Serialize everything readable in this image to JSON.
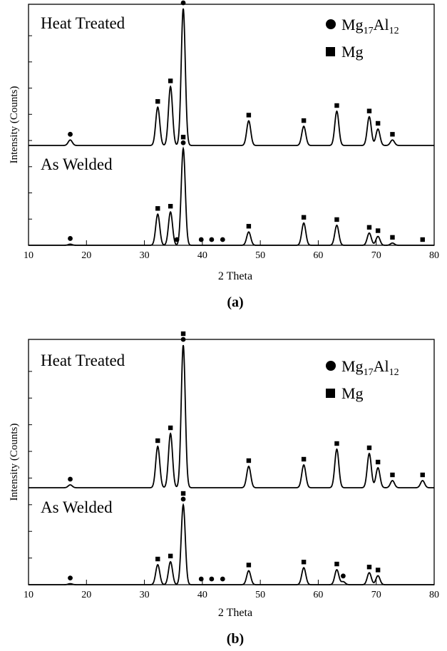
{
  "figure": {
    "marker_legend": {
      "circle_phase": {
        "main": "Mg",
        "sub1": "17",
        "mid": "Al",
        "sub2": "12"
      },
      "square_phase": "Mg"
    }
  },
  "chart_data": [
    {
      "type": "line",
      "panel_label": "(a)",
      "xlabel": "2 Theta",
      "ylabel": "Intensity (Counts)",
      "xlim": [
        10,
        80
      ],
      "xticks": [
        10,
        20,
        30,
        40,
        50,
        60,
        70,
        80
      ],
      "grid": false,
      "legend_position": "top-right",
      "series": [
        {
          "name": "Heat Treated",
          "peaks": [
            {
              "x": 17.2,
              "height": 0.04,
              "width": 0.35,
              "markers": [
                "circle"
              ]
            },
            {
              "x": 32.3,
              "height": 0.28,
              "width": 0.35,
              "markers": [
                "square"
              ]
            },
            {
              "x": 34.5,
              "height": 0.43,
              "width": 0.35,
              "markers": [
                "square"
              ]
            },
            {
              "x": 36.7,
              "height": 1.0,
              "width": 0.35,
              "markers": [
                "square",
                "circle"
              ]
            },
            {
              "x": 48.0,
              "height": 0.18,
              "width": 0.35,
              "markers": [
                "square"
              ]
            },
            {
              "x": 57.5,
              "height": 0.14,
              "width": 0.35,
              "markers": [
                "square"
              ]
            },
            {
              "x": 63.2,
              "height": 0.25,
              "width": 0.35,
              "markers": [
                "square"
              ]
            },
            {
              "x": 68.8,
              "height": 0.21,
              "width": 0.35,
              "markers": [
                "square"
              ]
            },
            {
              "x": 70.3,
              "height": 0.12,
              "width": 0.35,
              "markers": [
                "square"
              ]
            },
            {
              "x": 72.8,
              "height": 0.04,
              "width": 0.35,
              "markers": [
                "square"
              ]
            }
          ]
        },
        {
          "name": "As Welded",
          "peaks": [
            {
              "x": 17.2,
              "height": 0.01,
              "width": 0.35,
              "markers": [
                "circle"
              ]
            },
            {
              "x": 32.3,
              "height": 0.28,
              "width": 0.35,
              "markers": [
                "square"
              ]
            },
            {
              "x": 34.5,
              "height": 0.3,
              "width": 0.35,
              "markers": [
                "square"
              ]
            },
            {
              "x": 35.6,
              "height": 0.0,
              "width": 0.35,
              "markers": [
                "circle"
              ]
            },
            {
              "x": 36.7,
              "height": 0.87,
              "width": 0.35,
              "markers": [
                "square",
                "circle"
              ]
            },
            {
              "x": 39.8,
              "height": 0.0,
              "width": 0.35,
              "markers": [
                "circle"
              ]
            },
            {
              "x": 41.6,
              "height": 0.0,
              "width": 0.35,
              "markers": [
                "circle"
              ]
            },
            {
              "x": 43.5,
              "height": 0.0,
              "width": 0.35,
              "markers": [
                "circle"
              ]
            },
            {
              "x": 48.0,
              "height": 0.12,
              "width": 0.35,
              "markers": [
                "square"
              ]
            },
            {
              "x": 57.5,
              "height": 0.2,
              "width": 0.35,
              "markers": [
                "square"
              ]
            },
            {
              "x": 63.2,
              "height": 0.18,
              "width": 0.35,
              "markers": [
                "square"
              ]
            },
            {
              "x": 68.8,
              "height": 0.11,
              "width": 0.35,
              "markers": [
                "square"
              ]
            },
            {
              "x": 70.3,
              "height": 0.08,
              "width": 0.35,
              "markers": [
                "square"
              ]
            },
            {
              "x": 72.8,
              "height": 0.02,
              "width": 0.35,
              "markers": [
                "square"
              ]
            },
            {
              "x": 78.0,
              "height": 0.0,
              "width": 0.35,
              "markers": [
                "square"
              ]
            }
          ]
        }
      ]
    },
    {
      "type": "line",
      "panel_label": "(b)",
      "xlabel": "2 Theta",
      "ylabel": "Intensity (Counts)",
      "xlim": [
        10,
        80
      ],
      "xticks": [
        10,
        20,
        30,
        40,
        50,
        60,
        70,
        80
      ],
      "grid": false,
      "legend_position": "top-right",
      "series": [
        {
          "name": "Heat Treated",
          "peaks": [
            {
              "x": 17.2,
              "height": 0.02,
              "width": 0.35,
              "markers": [
                "circle"
              ]
            },
            {
              "x": 32.3,
              "height": 0.29,
              "width": 0.35,
              "markers": [
                "square"
              ]
            },
            {
              "x": 34.5,
              "height": 0.38,
              "width": 0.35,
              "markers": [
                "square"
              ]
            },
            {
              "x": 36.7,
              "height": 1.0,
              "width": 0.35,
              "markers": [
                "square",
                "circle"
              ]
            },
            {
              "x": 48.0,
              "height": 0.15,
              "width": 0.35,
              "markers": [
                "square"
              ]
            },
            {
              "x": 57.5,
              "height": 0.16,
              "width": 0.35,
              "markers": [
                "square"
              ]
            },
            {
              "x": 63.2,
              "height": 0.27,
              "width": 0.35,
              "markers": [
                "square"
              ]
            },
            {
              "x": 68.8,
              "height": 0.24,
              "width": 0.35,
              "markers": [
                "square"
              ]
            },
            {
              "x": 70.3,
              "height": 0.14,
              "width": 0.35,
              "markers": [
                "square"
              ]
            },
            {
              "x": 72.8,
              "height": 0.05,
              "width": 0.35,
              "markers": [
                "square"
              ]
            },
            {
              "x": 78.0,
              "height": 0.05,
              "width": 0.35,
              "markers": [
                "square"
              ]
            }
          ]
        },
        {
          "name": "As Welded",
          "peaks": [
            {
              "x": 17.2,
              "height": 0.01,
              "width": 0.35,
              "markers": [
                "circle"
              ]
            },
            {
              "x": 32.3,
              "height": 0.2,
              "width": 0.35,
              "markers": [
                "square"
              ]
            },
            {
              "x": 34.5,
              "height": 0.23,
              "width": 0.35,
              "markers": [
                "square"
              ]
            },
            {
              "x": 36.7,
              "height": 0.8,
              "width": 0.35,
              "markers": [
                "square",
                "circle"
              ]
            },
            {
              "x": 39.8,
              "height": 0.0,
              "width": 0.35,
              "markers": [
                "circle"
              ]
            },
            {
              "x": 41.6,
              "height": 0.0,
              "width": 0.35,
              "markers": [
                "circle"
              ]
            },
            {
              "x": 43.5,
              "height": 0.0,
              "width": 0.35,
              "markers": [
                "circle"
              ]
            },
            {
              "x": 48.0,
              "height": 0.14,
              "width": 0.35,
              "markers": [
                "square"
              ]
            },
            {
              "x": 57.5,
              "height": 0.17,
              "width": 0.35,
              "markers": [
                "square"
              ]
            },
            {
              "x": 63.2,
              "height": 0.15,
              "width": 0.35,
              "markers": [
                "square"
              ]
            },
            {
              "x": 64.3,
              "height": 0.03,
              "width": 0.35,
              "markers": [
                "circle"
              ]
            },
            {
              "x": 68.8,
              "height": 0.12,
              "width": 0.35,
              "markers": [
                "square"
              ]
            },
            {
              "x": 70.3,
              "height": 0.09,
              "width": 0.35,
              "markers": [
                "square"
              ]
            }
          ]
        }
      ]
    }
  ]
}
